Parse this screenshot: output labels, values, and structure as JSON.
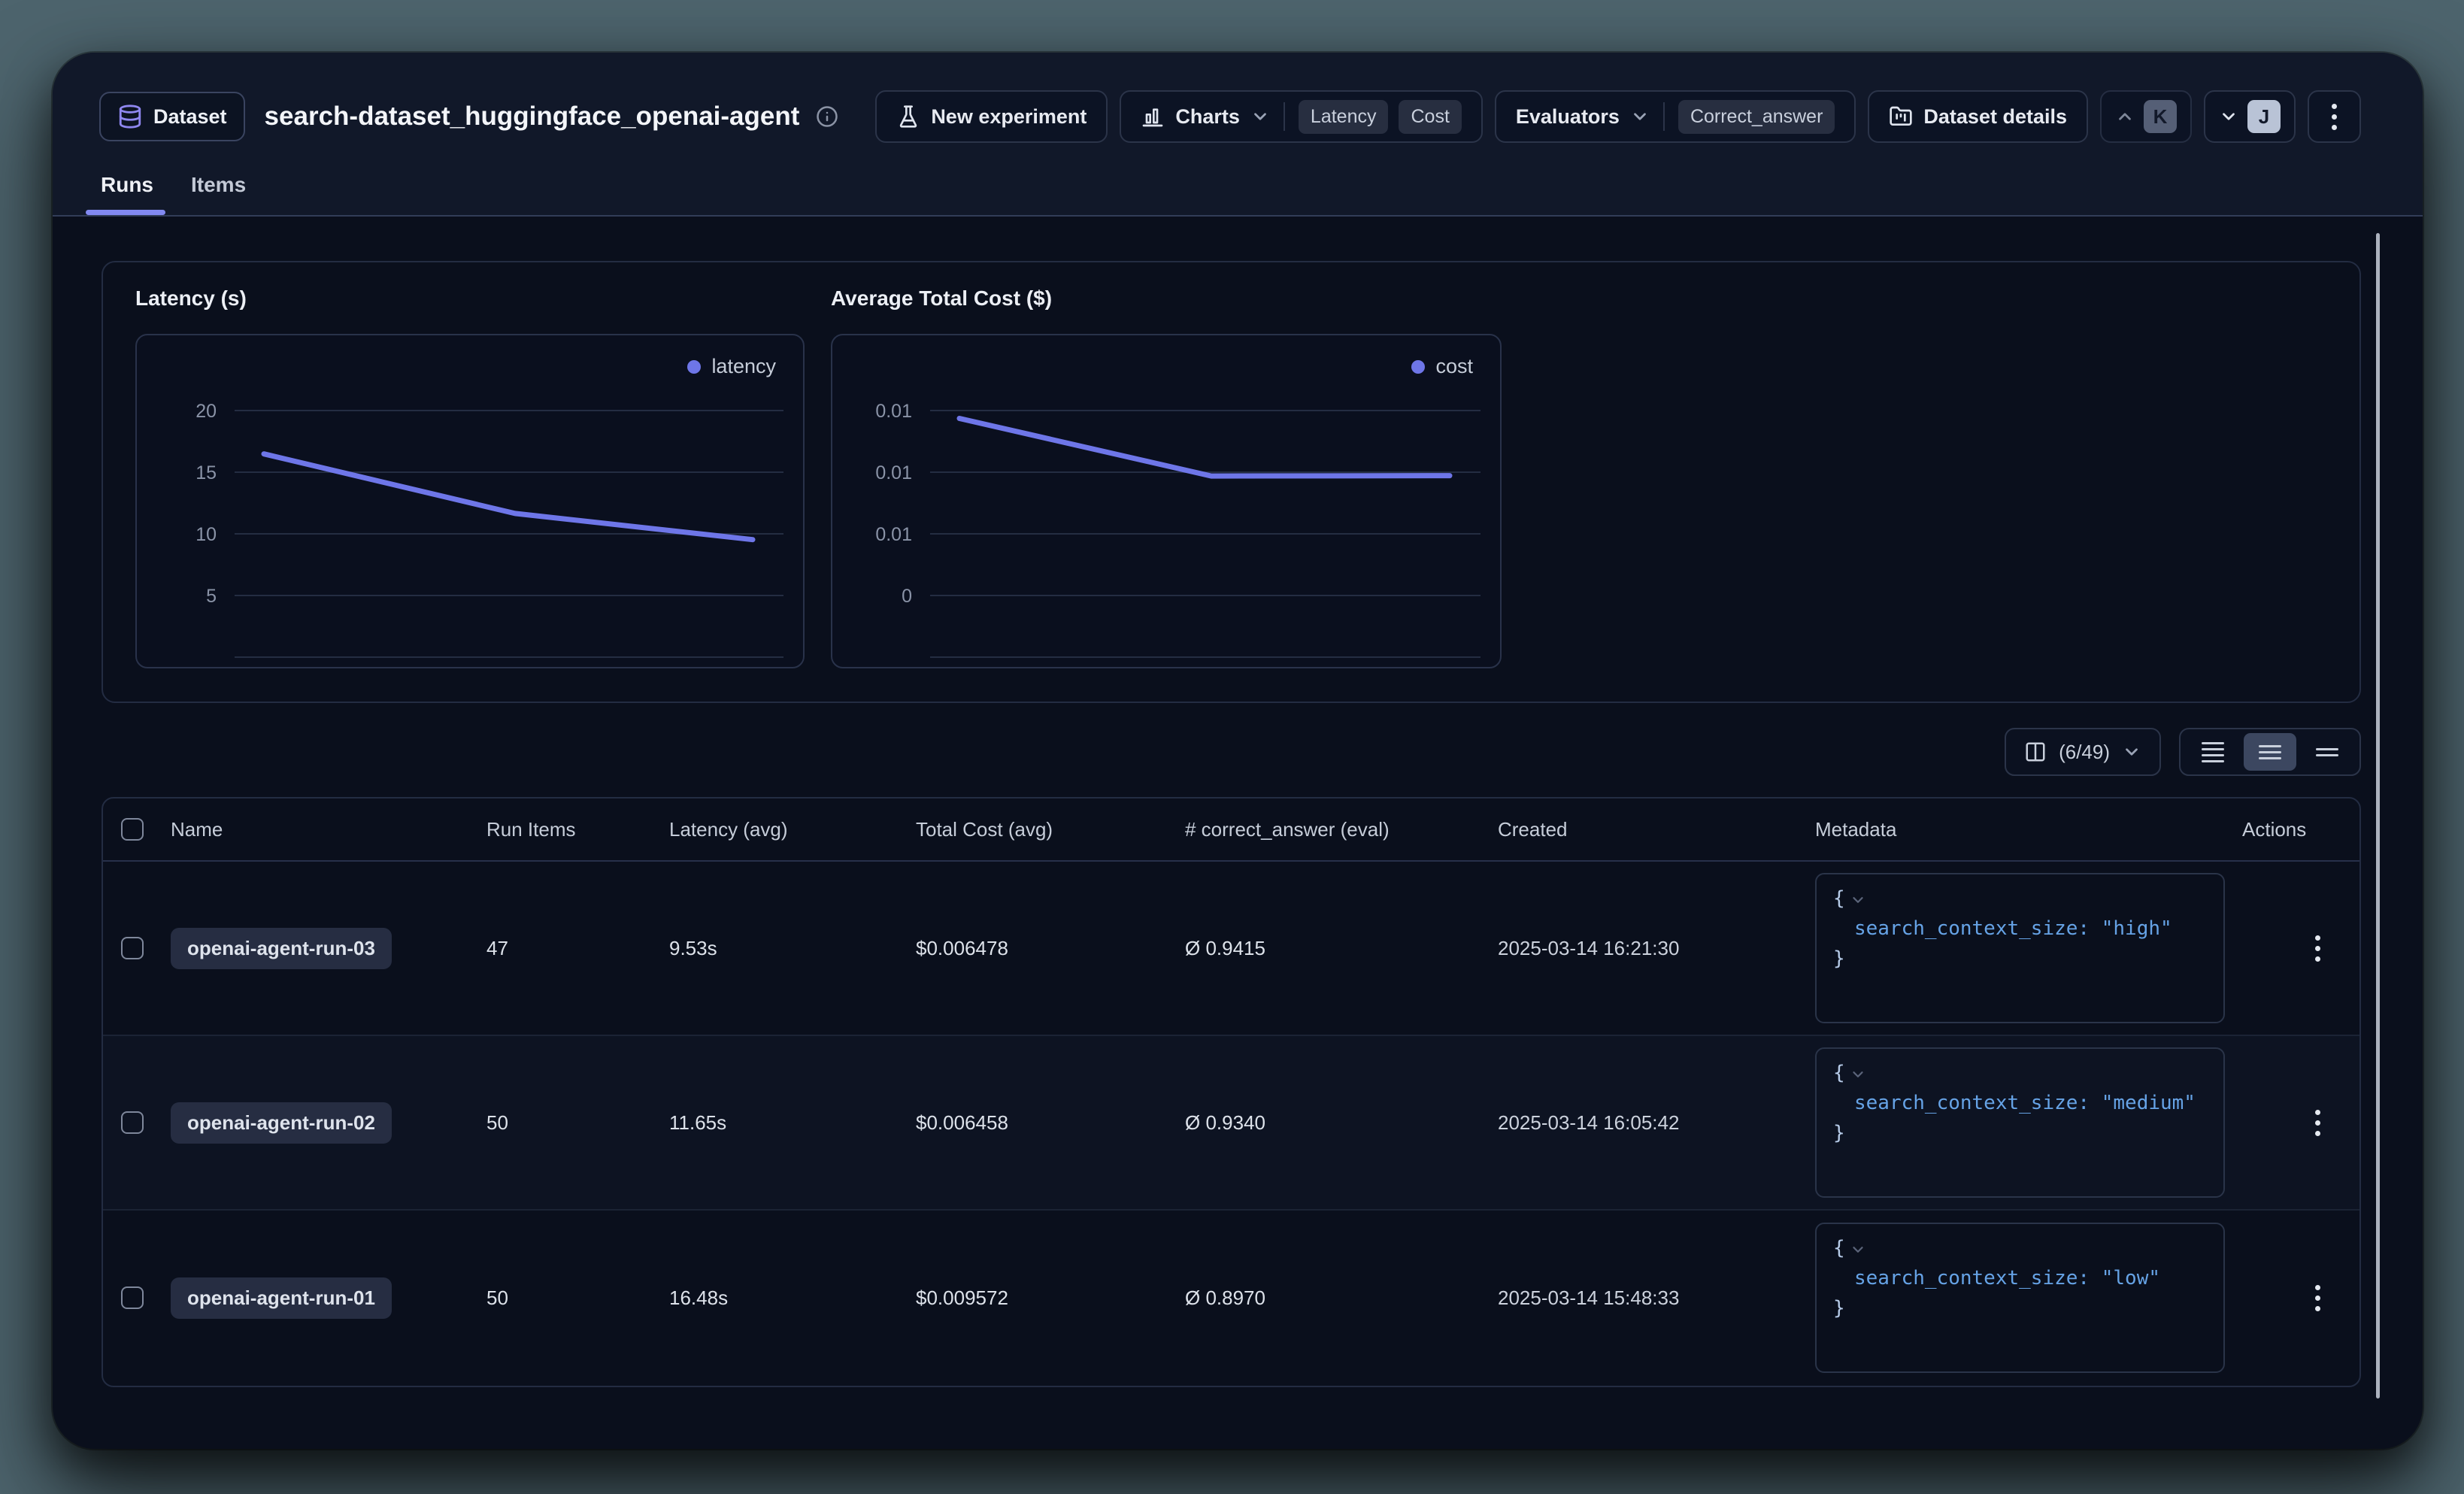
{
  "header": {
    "badge": {
      "label": "Dataset"
    },
    "title": "search-dataset_huggingface_openai-agent",
    "actions": {
      "new_experiment": "New experiment",
      "charts": {
        "label": "Charts",
        "badges": [
          "Latency",
          "Cost"
        ]
      },
      "evaluators": {
        "label": "Evaluators",
        "badges": [
          "Correct_answer"
        ]
      },
      "dataset_details": "Dataset details",
      "prev_key": "K",
      "next_key": "J"
    }
  },
  "tabs": {
    "runs": "Runs",
    "items": "Items"
  },
  "chart_data": [
    {
      "type": "line",
      "title": "Latency (s)",
      "legend": "latency",
      "color": "#6e76e8",
      "categories": [
        "openai-agent-run-01",
        "openai-agent-run-02",
        "openai-agent-run-03"
      ],
      "values": [
        16.48,
        11.65,
        9.53
      ],
      "yaxis": {
        "ticks": [
          "20",
          "15",
          "10",
          "5"
        ],
        "tick_values": [
          20,
          15,
          10,
          5
        ]
      },
      "grid": true,
      "legend_position": "top-right",
      "xlabel": "",
      "ylabel": ""
    },
    {
      "type": "line",
      "title": "Average Total Cost ($)",
      "legend": "cost",
      "color": "#6e76e8",
      "categories": [
        "openai-agent-run-01",
        "openai-agent-run-02",
        "openai-agent-run-03"
      ],
      "values": [
        0.009572,
        0.006458,
        0.006478
      ],
      "yaxis": {
        "ticks": [
          "0.01",
          "0.01",
          "0.01",
          "0"
        ],
        "tick_values": [
          0.01,
          0.006667,
          0.003333,
          0
        ]
      },
      "grid": true,
      "legend_position": "top-right",
      "xlabel": "",
      "ylabel": ""
    }
  ],
  "toolbar": {
    "columns": "(6/49)"
  },
  "metadata_syntax": {
    "open": "{",
    "close": "}"
  },
  "table": {
    "columns": [
      "Name",
      "Run Items",
      "Latency (avg)",
      "Total Cost (avg)",
      "# correct_answer (eval)",
      "Created",
      "Metadata",
      "Actions"
    ],
    "rows": [
      {
        "name": "openai-agent-run-03",
        "run_items": "47",
        "latency_avg": "9.53s",
        "total_cost_avg": "$0.006478",
        "correct_answer": "Ø 0.9415",
        "created": "2025-03-14 16:21:30",
        "metadata": {
          "key": "search_context_size",
          "value": "\"high\""
        }
      },
      {
        "name": "openai-agent-run-02",
        "run_items": "50",
        "latency_avg": "11.65s",
        "total_cost_avg": "$0.006458",
        "correct_answer": "Ø 0.9340",
        "created": "2025-03-14 16:05:42",
        "metadata": {
          "key": "search_context_size",
          "value": "\"medium\""
        }
      },
      {
        "name": "openai-agent-run-01",
        "run_items": "50",
        "latency_avg": "16.48s",
        "total_cost_avg": "$0.009572",
        "correct_answer": "Ø 0.8970",
        "created": "2025-03-14 15:48:33",
        "metadata": {
          "key": "search_context_size",
          "value": "\"low\""
        }
      }
    ]
  }
}
